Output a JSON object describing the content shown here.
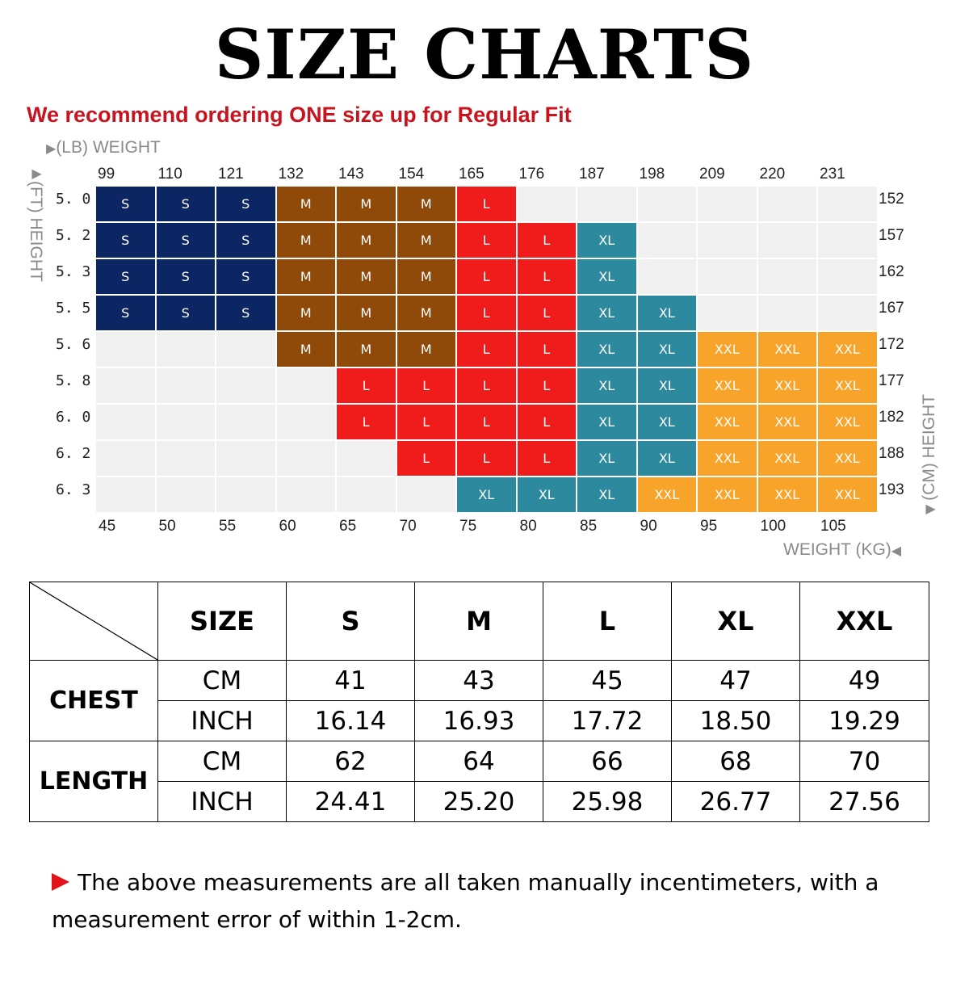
{
  "title": "SIZE CHARTS",
  "recommendation": "We recommend ordering ONE size up for Regular Fit",
  "axes": {
    "lb_label": "(LB) WEIGHT",
    "kg_label": "WEIGHT (KG)",
    "ft_label": "(FT) HEIGHT",
    "cm_label": "(CM) HEIGHT",
    "lb_ticks": [
      "99",
      "110",
      "121",
      "132",
      "143",
      "154",
      "165",
      "176",
      "187",
      "198",
      "209",
      "220",
      "231"
    ],
    "kg_ticks": [
      "45",
      "50",
      "55",
      "60",
      "65",
      "70",
      "75",
      "80",
      "85",
      "90",
      "95",
      "100",
      "105"
    ],
    "ft_ticks": [
      "5. 0",
      "5. 2",
      "5. 3",
      "5. 5",
      "5. 6",
      "5. 8",
      "6. 0",
      "6. 2",
      "6. 3"
    ],
    "cm_ticks": [
      "152",
      "157",
      "162",
      "167",
      "172",
      "177",
      "182",
      "188",
      "193"
    ]
  },
  "colors": {
    "S": "#0b2662",
    "M": "#8f4a0a",
    "L": "#f01b1b",
    "XL": "#2d8a9e",
    "XXL": "#f8a32a",
    "empty": "#f0f0f0"
  },
  "size_grid": [
    [
      "S",
      "S",
      "S",
      "M",
      "M",
      "M",
      "L",
      "",
      "",
      "",
      "",
      "",
      ""
    ],
    [
      "S",
      "S",
      "S",
      "M",
      "M",
      "M",
      "L",
      "L",
      "XL",
      "",
      "",
      "",
      ""
    ],
    [
      "S",
      "S",
      "S",
      "M",
      "M",
      "M",
      "L",
      "L",
      "XL",
      "",
      "",
      "",
      ""
    ],
    [
      "S",
      "S",
      "S",
      "M",
      "M",
      "M",
      "L",
      "L",
      "XL",
      "XL",
      "",
      "",
      ""
    ],
    [
      "",
      "",
      "",
      "M",
      "M",
      "M",
      "L",
      "L",
      "XL",
      "XL",
      "XXL",
      "XXL",
      "XXL"
    ],
    [
      "",
      "",
      "",
      "",
      "L",
      "L",
      "L",
      "L",
      "XL",
      "XL",
      "XXL",
      "XXL",
      "XXL"
    ],
    [
      "",
      "",
      "",
      "",
      "L",
      "L",
      "L",
      "L",
      "XL",
      "XL",
      "XXL",
      "XXL",
      "XXL"
    ],
    [
      "",
      "",
      "",
      "",
      "",
      "L",
      "L",
      "L",
      "XL",
      "XL",
      "XXL",
      "XXL",
      "XXL"
    ],
    [
      "",
      "",
      "",
      "",
      "",
      "",
      "XL",
      "XL",
      "XL",
      "XXL",
      "XXL",
      "XXL",
      "XXL"
    ]
  ],
  "table": {
    "size_header": "SIZE",
    "sizes": [
      "S",
      "M",
      "L",
      "XL",
      "XXL"
    ],
    "chest_label": "CHEST",
    "length_label": "LENGTH",
    "cm": "CM",
    "inch": "INCH",
    "chest_cm": [
      "41",
      "43",
      "45",
      "47",
      "49"
    ],
    "chest_inch": [
      "16.14",
      "16.93",
      "17.72",
      "18.50",
      "19.29"
    ],
    "length_cm": [
      "62",
      "64",
      "66",
      "68",
      "70"
    ],
    "length_inch": [
      "24.41",
      "25.20",
      "25.98",
      "26.77",
      "27.56"
    ]
  },
  "note": "The above measurements are all taken manually incentimeters, with a measurement error of within 1-2cm."
}
